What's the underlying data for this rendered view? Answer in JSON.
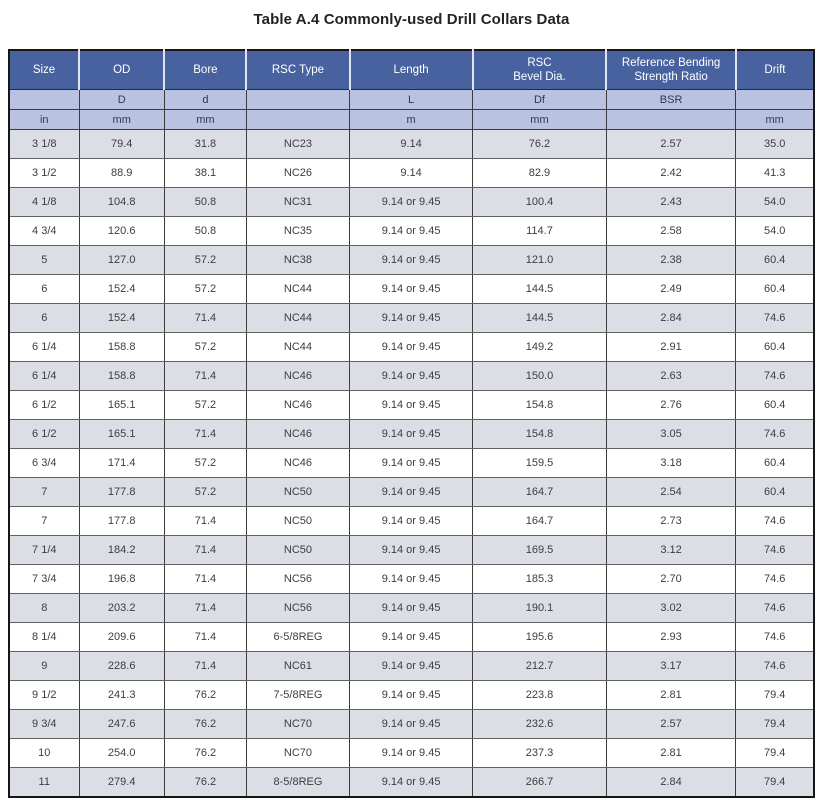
{
  "title": "Table A.4 Commonly-used Drill Collars Data",
  "colors": {
    "header_bg": "#47629f",
    "header_text": "#ffffff",
    "subheader_bg": "#b9c2e0",
    "stripe_row_bg": "#dcdee6",
    "white_row_bg": "#ffffff",
    "outer_border": "#161616",
    "cell_border": "#3c3c3c",
    "body_text": "#3d3d3d"
  },
  "table": {
    "columns": [
      {
        "label": "Size",
        "symbol": "",
        "unit": "in"
      },
      {
        "label": "OD",
        "symbol": "D",
        "unit": "mm"
      },
      {
        "label": "Bore",
        "symbol": "d",
        "unit": "mm"
      },
      {
        "label": "RSC Type",
        "symbol": "",
        "unit": ""
      },
      {
        "label": "Length",
        "symbol": "L",
        "unit": "m"
      },
      {
        "label": "RSC\nBevel Dia.",
        "symbol": "Df",
        "unit": "mm"
      },
      {
        "label": "Reference Bending\nStrength Ratio",
        "symbol": "BSR",
        "unit": ""
      },
      {
        "label": "Drift",
        "symbol": "",
        "unit": "mm"
      }
    ],
    "rows": [
      [
        "3 1/8",
        "79.4",
        "31.8",
        "NC23",
        "9.14",
        "76.2",
        "2.57",
        "35.0"
      ],
      [
        "3 1/2",
        "88.9",
        "38.1",
        "NC26",
        "9.14",
        "82.9",
        "2.42",
        "41.3"
      ],
      [
        "4 1/8",
        "104.8",
        "50.8",
        "NC31",
        "9.14 or 9.45",
        "100.4",
        "2.43",
        "54.0"
      ],
      [
        "4 3/4",
        "120.6",
        "50.8",
        "NC35",
        "9.14 or 9.45",
        "114.7",
        "2.58",
        "54.0"
      ],
      [
        "5",
        "127.0",
        "57.2",
        "NC38",
        "9.14 or 9.45",
        "121.0",
        "2.38",
        "60.4"
      ],
      [
        "6",
        "152.4",
        "57.2",
        "NC44",
        "9.14 or 9.45",
        "144.5",
        "2.49",
        "60.4"
      ],
      [
        "6",
        "152.4",
        "71.4",
        "NC44",
        "9.14 or 9.45",
        "144.5",
        "2.84",
        "74.6"
      ],
      [
        "6 1/4",
        "158.8",
        "57.2",
        "NC44",
        "9.14 or 9.45",
        "149.2",
        "2.91",
        "60.4"
      ],
      [
        "6 1/4",
        "158.8",
        "71.4",
        "NC46",
        "9.14 or 9.45",
        "150.0",
        "2.63",
        "74.6"
      ],
      [
        "6 1/2",
        "165.1",
        "57.2",
        "NC46",
        "9.14 or 9.45",
        "154.8",
        "2.76",
        "60.4"
      ],
      [
        "6 1/2",
        "165.1",
        "71.4",
        "NC46",
        "9.14 or 9.45",
        "154.8",
        "3.05",
        "74.6"
      ],
      [
        "6 3/4",
        "171.4",
        "57.2",
        "NC46",
        "9.14 or 9.45",
        "159.5",
        "3.18",
        "60.4"
      ],
      [
        "7",
        "177.8",
        "57.2",
        "NC50",
        "9.14 or 9.45",
        "164.7",
        "2.54",
        "60.4"
      ],
      [
        "7",
        "177.8",
        "71.4",
        "NC50",
        "9.14 or 9.45",
        "164.7",
        "2.73",
        "74.6"
      ],
      [
        "7 1/4",
        "184.2",
        "71.4",
        "NC50",
        "9.14 or 9.45",
        "169.5",
        "3.12",
        "74.6"
      ],
      [
        "7 3/4",
        "196.8",
        "71.4",
        "NC56",
        "9.14 or 9.45",
        "185.3",
        "2.70",
        "74.6"
      ],
      [
        "8",
        "203.2",
        "71.4",
        "NC56",
        "9.14 or 9.45",
        "190.1",
        "3.02",
        "74.6"
      ],
      [
        "8 1/4",
        "209.6",
        "71.4",
        "6-5/8REG",
        "9.14 or 9.45",
        "195.6",
        "2.93",
        "74.6"
      ],
      [
        "9",
        "228.6",
        "71.4",
        "NC61",
        "9.14 or 9.45",
        "212.7",
        "3.17",
        "74.6"
      ],
      [
        "9 1/2",
        "241.3",
        "76.2",
        "7-5/8REG",
        "9.14 or 9.45",
        "223.8",
        "2.81",
        "79.4"
      ],
      [
        "9 3/4",
        "247.6",
        "76.2",
        "NC70",
        "9.14 or 9.45",
        "232.6",
        "2.57",
        "79.4"
      ],
      [
        "10",
        "254.0",
        "76.2",
        "NC70",
        "9.14 or 9.45",
        "237.3",
        "2.81",
        "79.4"
      ],
      [
        "11",
        "279.4",
        "76.2",
        "8-5/8REG",
        "9.14 or 9.45",
        "266.7",
        "2.84",
        "79.4"
      ]
    ]
  }
}
